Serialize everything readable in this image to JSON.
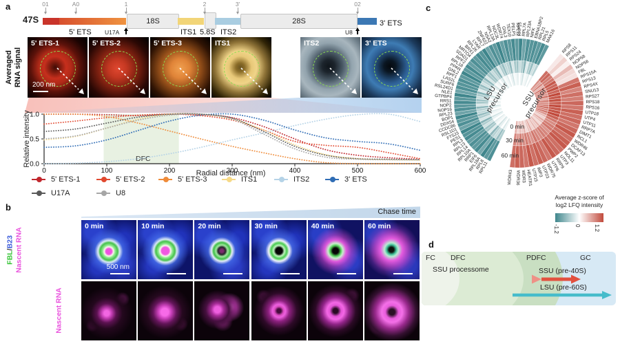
{
  "panels": {
    "a": "a",
    "b": "b",
    "c": "c",
    "d": "d"
  },
  "schematic": {
    "transcript_label": "47S",
    "sites": [
      "01",
      "A0",
      "1",
      "2",
      "3'",
      "02"
    ],
    "probes": [
      "U17A",
      "U8"
    ],
    "segments": {
      "five_ets": "5' ETS",
      "r18s": "18S",
      "its1": "ITS1",
      "r58s": "5.8S",
      "its2": "ITS2",
      "r28s": "28S",
      "three_ets": "3' ETS"
    }
  },
  "avg_row": {
    "ylabel_line1": "Averaged",
    "ylabel_line2": "RNA signal",
    "scalebar": "200 nm",
    "tiles": [
      {
        "label": "5' ETS-1",
        "key": "ets1"
      },
      {
        "label": "5' ETS-2",
        "key": "ets2"
      },
      {
        "label": "5' ETS-3",
        "key": "ets3"
      },
      {
        "label": "ITS1",
        "key": "its1"
      },
      {
        "label": "ITS2",
        "key": "its2"
      },
      {
        "label": "3' ETS",
        "key": "ets3p"
      }
    ]
  },
  "chart_data": [
    {
      "type": "line",
      "xlabel": "Radial distance (nm)",
      "ylabel": "Relative intensity",
      "xlim": [
        0,
        600
      ],
      "ylim": [
        0.0,
        1.0
      ],
      "xticks": [
        0,
        100,
        200,
        300,
        400,
        500,
        600
      ],
      "yticks": [
        0.0,
        0.5,
        1.0
      ],
      "grid": false,
      "dfc_band": {
        "label": "DFC",
        "x0": 95,
        "x1": 215,
        "color": "#e8f1e2"
      },
      "x": [
        0,
        50,
        100,
        150,
        200,
        250,
        300,
        350,
        400,
        450,
        500,
        550,
        600
      ],
      "series": [
        {
          "name": "5' ETS-1",
          "color": "#c1272d",
          "values": [
            1.0,
            1.0,
            0.99,
            0.97,
            1.0,
            0.99,
            0.93,
            0.75,
            0.5,
            0.28,
            0.17,
            0.12,
            0.09
          ]
        },
        {
          "name": "5' ETS-2",
          "color": "#e1492f",
          "values": [
            0.8,
            0.86,
            0.93,
            0.98,
            1.0,
            0.97,
            0.88,
            0.68,
            0.45,
            0.37,
            0.33,
            0.22,
            0.1
          ]
        },
        {
          "name": "5' ETS-3",
          "color": "#ef8b39",
          "values": [
            1.0,
            1.0,
            0.95,
            0.82,
            0.66,
            0.5,
            0.35,
            0.22,
            0.1,
            0.02,
            0.0,
            0.0,
            0.0
          ]
        },
        {
          "name": "ITS1",
          "color": "#f6d987",
          "values": [
            0.48,
            0.55,
            0.72,
            0.9,
            1.0,
            1.0,
            0.9,
            0.68,
            0.38,
            0.18,
            0.1,
            0.08,
            0.07
          ]
        },
        {
          "name": "ITS2",
          "color": "#b5d3e7",
          "values": [
            0.0,
            0.01,
            0.04,
            0.1,
            0.2,
            0.33,
            0.48,
            0.62,
            0.77,
            0.9,
            0.99,
            1.0,
            0.85
          ]
        },
        {
          "name": "3' ETS",
          "color": "#2f6db5",
          "values": [
            0.33,
            0.36,
            0.48,
            0.67,
            0.86,
            0.98,
            1.0,
            0.88,
            0.68,
            0.52,
            0.45,
            0.4,
            0.27
          ]
        },
        {
          "name": "U17A",
          "color": "#595959",
          "values": [
            0.65,
            0.7,
            0.82,
            0.94,
            1.0,
            1.0,
            0.92,
            0.65,
            0.35,
            0.17,
            0.1,
            0.09,
            0.08
          ]
        },
        {
          "name": "U8",
          "color": "#a6a6a6",
          "values": [
            0.5,
            0.56,
            0.72,
            0.88,
            0.98,
            1.0,
            0.9,
            0.6,
            0.3,
            0.13,
            0.09,
            0.08,
            0.08
          ]
        }
      ]
    },
    {
      "type": "polar-heatmap",
      "rings": [
        "0 min",
        "30 min",
        "60 min"
      ],
      "colorbar": {
        "title_line1": "Average z-score of",
        "title_line2": "log2 LFQ intensity",
        "min": "-1.2",
        "mid": "0",
        "max": "1.2",
        "neg_color": "#3f868c",
        "pos_color": "#c14a3c"
      },
      "groups": [
        {
          "name": "LSU precursor",
          "genes": [
            [
              "RPL11",
              -0.1,
              -0.5,
              -1.1
            ],
            [
              "RPL8",
              -0.25,
              -0.65,
              -1.0
            ],
            [
              "RPL18A",
              0.0,
              -0.35,
              -1.2
            ],
            [
              "EIF6",
              -0.15,
              -0.45,
              -0.85
            ],
            [
              "RRP1",
              -0.3,
              -0.7,
              -1.15
            ],
            [
              "RPL10A",
              -0.05,
              -0.2,
              -1.0
            ],
            [
              "RPL14",
              -0.1,
              -0.55,
              -1.1
            ],
            [
              "RPL13",
              -0.2,
              -0.6,
              -0.95
            ],
            [
              "RPL3",
              0.0,
              -0.3,
              -1.15
            ],
            [
              "PES1",
              -0.15,
              -0.5,
              -1.05
            ],
            [
              "FTSJ3",
              -0.3,
              -0.75,
              -1.2
            ],
            [
              "RSL1D1",
              -0.05,
              -0.25,
              -0.9
            ],
            [
              "CCDC86",
              -0.1,
              -0.5,
              -1.1
            ],
            [
              "DDX54",
              -0.2,
              -0.65,
              -1.0
            ],
            [
              "BOP1",
              0.0,
              -0.4,
              -1.2
            ],
            [
              "RPL23",
              -0.15,
              -0.45,
              -0.9
            ],
            [
              "NOP16",
              -0.3,
              -0.7,
              -1.1
            ],
            [
              "NOP2",
              -0.05,
              -0.25,
              -1.0
            ],
            [
              "RRS1",
              -0.1,
              -0.55,
              -1.15
            ],
            [
              "GTPBP4",
              -0.2,
              -0.6,
              -1.0
            ],
            [
              "NLE1",
              0.0,
              -0.35,
              -1.2
            ],
            [
              "RSL24D1",
              -0.15,
              -0.5,
              -0.9
            ],
            [
              "SURF6",
              -0.3,
              -0.75,
              -1.1
            ],
            [
              "LAS1L",
              -0.05,
              -0.2,
              -1.05
            ],
            [
              "RPF1",
              -0.1,
              -0.5,
              -1.1
            ],
            [
              "GNL2",
              -0.2,
              -0.65,
              -1.0
            ],
            [
              "PPAN",
              0.0,
              -0.3,
              -1.2
            ],
            [
              "RPL18",
              -0.15,
              -0.45,
              -1.0
            ],
            [
              "RPF2",
              -0.3,
              -0.7,
              -1.15
            ],
            [
              "SDAD1",
              -0.05,
              -0.25,
              -0.95
            ],
            [
              "MRTO4",
              -0.1,
              -0.55,
              -1.1
            ],
            [
              "BRX1",
              -0.2,
              -0.6,
              -1.0
            ],
            [
              "RPL26",
              0.0,
              -0.35,
              -1.15
            ],
            [
              "LYAR",
              -0.15,
              -0.5,
              -1.05
            ],
            [
              "RPL7",
              -0.3,
              -0.75,
              -1.2
            ],
            [
              "ZNF622",
              -0.05,
              -0.2,
              -0.9
            ],
            [
              "NSA2",
              -0.1,
              -0.5,
              -1.1
            ],
            [
              "RPL13A",
              -0.2,
              -0.65,
              -1.0
            ],
            [
              "NOC3L",
              0.0,
              -0.4,
              -1.2
            ],
            [
              "WDR74",
              -0.15,
              -0.45,
              -0.95
            ],
            [
              "GNL3",
              -0.3,
              -0.7,
              -1.1
            ],
            [
              "TEX10",
              -0.05,
              -0.25,
              -1.0
            ],
            [
              "PELP1",
              -0.1,
              -0.55,
              -1.15
            ],
            [
              "RPL12",
              -0.2,
              -0.6,
              -1.0
            ],
            [
              "RRP15",
              0.0,
              -0.35,
              -1.2
            ],
            [
              "RPL7A",
              -0.15,
              -0.5,
              -0.9
            ],
            [
              "RPL23A",
              -0.3,
              -0.75,
              -1.1
            ],
            [
              "NIFK",
              -0.05,
              -0.2,
              -1.05
            ],
            [
              "EBNA1BP2",
              -0.1,
              -0.5,
              -1.1
            ],
            [
              "RPL21",
              -0.2,
              -0.65,
              -1.0
            ],
            [
              "RPL5",
              0.0,
              -0.3,
              -1.15
            ],
            [
              "MAK16",
              -0.15,
              -0.45,
              -1.0
            ]
          ]
        },
        {
          "name": "SSU precursor",
          "genes": [
            [
              "RPS8",
              0.75,
              0.95,
              0.15
            ],
            [
              "RPS11",
              0.6,
              1.0,
              0.3
            ],
            [
              "RPS24",
              0.8,
              0.85,
              0.1
            ],
            [
              "NOP58",
              0.5,
              0.9,
              0.45
            ],
            [
              "NOP56",
              0.9,
              1.1,
              0.25
            ],
            [
              "FBL",
              0.7,
              1.0,
              0.2
            ],
            [
              "RPS15A",
              0.85,
              1.15,
              0.9
            ],
            [
              "RPS13",
              0.7,
              1.0,
              1.05
            ],
            [
              "RPS4X",
              0.95,
              1.2,
              0.8
            ],
            [
              "SNU13",
              0.6,
              1.1,
              0.95
            ],
            [
              "RPS27",
              0.9,
              1.15,
              0.85
            ],
            [
              "RPS18",
              0.75,
              1.05,
              1.0
            ],
            [
              "RPS16",
              0.85,
              1.2,
              0.9
            ],
            [
              "UTP18",
              0.95,
              1.1,
              1.05
            ],
            [
              "UTP4",
              0.8,
              1.15,
              0.95
            ],
            [
              "UTP11",
              0.9,
              1.2,
              1.0
            ],
            [
              "RRP7A",
              0.7,
              1.05,
              0.9
            ],
            [
              "DIMT1",
              0.45,
              0.9,
              1.0
            ],
            [
              "RCL1",
              0.3,
              0.75,
              1.1
            ],
            [
              "WDR46",
              0.55,
              0.85,
              0.95
            ],
            [
              "DCAF13",
              0.4,
              0.9,
              1.05
            ],
            [
              "PWP2",
              0.25,
              0.7,
              1.1
            ],
            [
              "NOL11",
              0.5,
              0.8,
              0.95
            ],
            [
              "UTP3",
              0.35,
              0.85,
              1.0
            ],
            [
              "RRP9",
              0.45,
              0.75,
              1.1
            ],
            [
              "UTP6",
              0.3,
              0.8,
              0.9
            ],
            [
              "WDR75",
              0.55,
              0.9,
              1.0
            ],
            [
              "UTP23",
              0.4,
              0.7,
              1.05
            ],
            [
              "IMP3",
              0.25,
              0.8,
              0.95
            ],
            [
              "UTP15",
              0.5,
              0.85,
              1.1
            ],
            [
              "HEATR1",
              0.35,
              0.75,
              0.9
            ],
            [
              "WDR3",
              0.45,
              0.85,
              1.0
            ],
            [
              "WDR36",
              0.3,
              0.7,
              1.05
            ],
            [
              "WDR43",
              0.55,
              0.8,
              0.95
            ]
          ]
        }
      ]
    }
  ],
  "panel_b": {
    "banner": "Chase time",
    "row1_caption_parts": [
      {
        "text": "FBL",
        "color": "#35c435"
      },
      {
        "text": " / ",
        "color": "#333333"
      },
      {
        "text": "B23",
        "color": "#3b5bdb"
      }
    ],
    "row1_caption_line2": "Nascent RNA",
    "row2_caption": "Nascent RNA",
    "magenta": "#e950dd",
    "scalebar": "500 nm",
    "times": [
      "0 min",
      "10 min",
      "20 min",
      "30 min",
      "40 min",
      "60 min"
    ]
  },
  "panel_d": {
    "regions": [
      "FC",
      "DFC",
      "PDFC",
      "GC"
    ],
    "arrow1_label": "SSU processome",
    "arrow2_label": "SSU (pre-40S)",
    "arrow3_label": "LSU (pre-60S)",
    "ssu_color": "#e2503f",
    "lsu_color": "#46bccb"
  }
}
